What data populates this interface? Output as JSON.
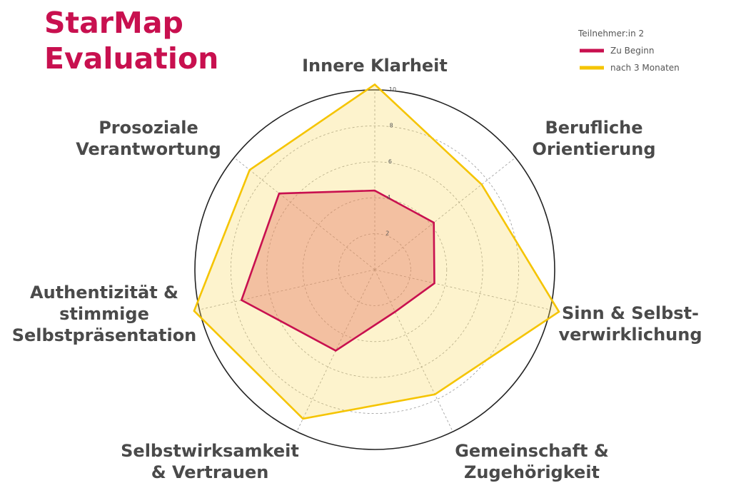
{
  "header": {
    "title_line1": "StarMap",
    "title_line2": "Evaluation"
  },
  "chart_data": {
    "type": "radar",
    "axes": [
      [
        "Innere Klarheit"
      ],
      [
        "Berufliche",
        "Orientierung"
      ],
      [
        "Sinn & Selbst-",
        "verwirklichung"
      ],
      [
        "Gemeinschaft &",
        "Zugehörigkeit"
      ],
      [
        "Selbstwirksamkeit",
        "& Vertrauen"
      ],
      [
        "Authentizität &",
        "stimmige",
        "Selbstpräsentation"
      ],
      [
        "Prosoziale",
        "Verantwortung"
      ]
    ],
    "range": [
      0,
      10
    ],
    "ticks": [
      "2",
      "4",
      "6",
      "8",
      "10"
    ],
    "legend_title": "Teilnehmer:in 2",
    "series": [
      {
        "name": "Zu Beginn",
        "color": "#c8104f",
        "values": [
          4.4,
          4.2,
          3.4,
          2.6,
          5.0,
          7.6,
          6.8
        ]
      },
      {
        "name": "nach 3 Monaten",
        "color": "#f5c400",
        "values": [
          10.3,
          7.6,
          10.5,
          7.7,
          9.2,
          10.3,
          8.9
        ]
      }
    ]
  }
}
